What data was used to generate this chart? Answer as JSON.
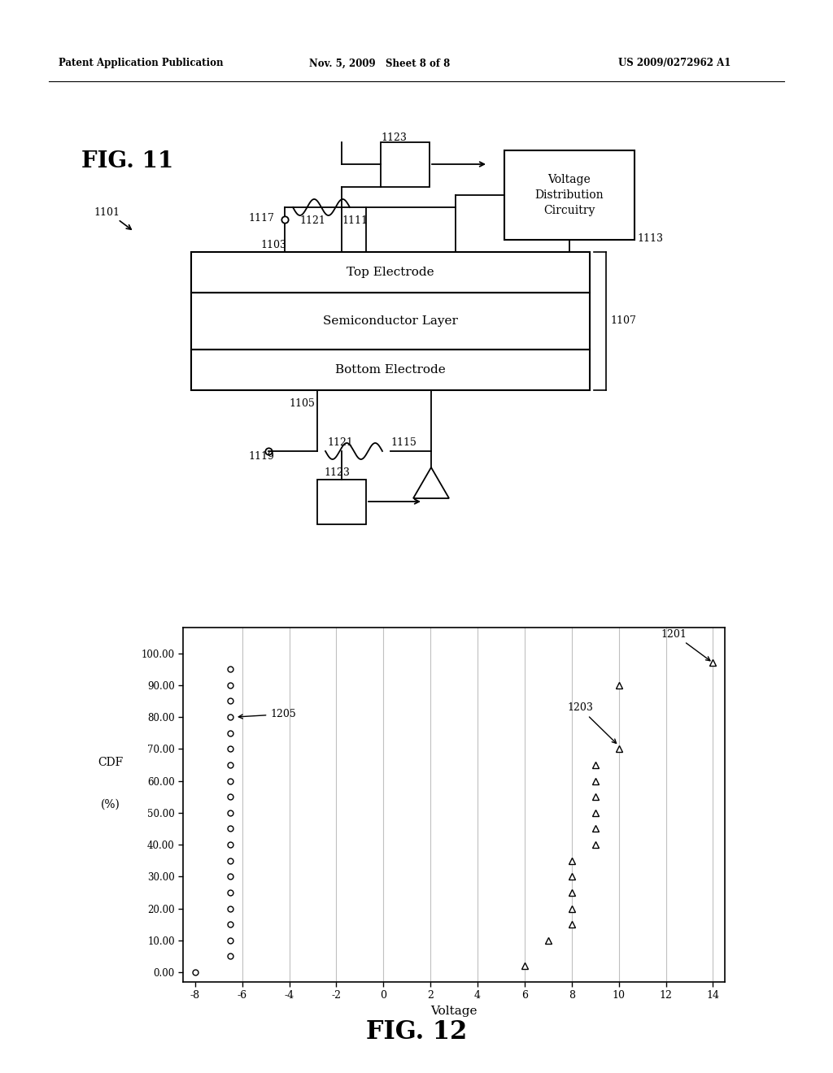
{
  "header_left": "Patent Application Publication",
  "header_mid": "Nov. 5, 2009   Sheet 8 of 8",
  "header_right": "US 2009/0272962 A1",
  "fig11_label": "FIG. 11",
  "fig12_label": "FIG. 12",
  "electrode_top_label": "Top Electrode",
  "electrode_semiconductor_label": "Semiconductor Layer",
  "electrode_bottom_label": "Bottom Electrode",
  "voltage_box_label": "Voltage\nDistribution\nCircuitry",
  "chart_xlabel": "Voltage",
  "chart_ylabel_line1": "CDF",
  "chart_ylabel_line2": "(%)",
  "background_color": "#ffffff",
  "circ_x": [
    -8,
    -6.5,
    -6.5,
    -6.5,
    -6.5,
    -6.5,
    -6.5,
    -6.5,
    -6.5,
    -6.5,
    -6.5,
    -6.5,
    -6.5,
    -6.5,
    -6.5,
    -6.5,
    -6.5,
    -6.5,
    -6.5,
    -6.5
  ],
  "circ_y": [
    0,
    5,
    10,
    15,
    20,
    25,
    30,
    35,
    40,
    45,
    50,
    55,
    60,
    65,
    70,
    75,
    80,
    85,
    90,
    95
  ],
  "tri_x": [
    6,
    7,
    8,
    8,
    8,
    8,
    8,
    9,
    9,
    9,
    9,
    9,
    9,
    10,
    10,
    14
  ],
  "tri_y": [
    2,
    10,
    15,
    20,
    25,
    30,
    35,
    40,
    45,
    50,
    55,
    60,
    65,
    70,
    90,
    97
  ]
}
